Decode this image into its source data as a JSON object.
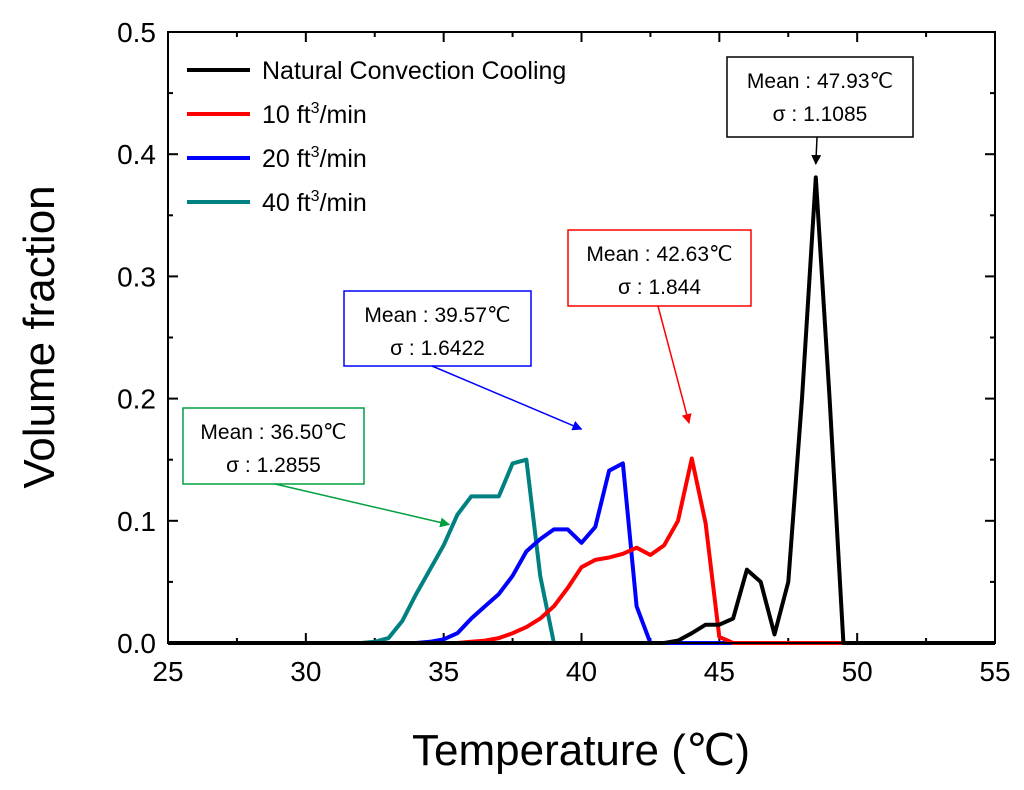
{
  "chart_data": {
    "type": "line",
    "title": "",
    "xlabel": "Temperature (℃)",
    "ylabel": "Volume fraction",
    "xlim": [
      25,
      55
    ],
    "ylim": [
      0,
      0.5
    ],
    "xticks": [
      "25",
      "30",
      "35",
      "40",
      "45",
      "50",
      "55"
    ],
    "yticks": [
      "0.0",
      "0.1",
      "0.2",
      "0.3",
      "0.4",
      "0.5"
    ],
    "legend_position": "top-left",
    "series": [
      {
        "name": "Natural Convection Cooling",
        "legend_base": "Natural Convection Cooling",
        "legend_sup": "",
        "legend_tail": "",
        "color": "#000000",
        "x": [
          25,
          43,
          43.5,
          44,
          44.5,
          45,
          45.5,
          46,
          46.5,
          47,
          47.5,
          48,
          48.5,
          49,
          49.5,
          55
        ],
        "y": [
          0,
          0,
          0.002,
          0.008,
          0.015,
          0.015,
          0.02,
          0.06,
          0.05,
          0.007,
          0.05,
          0.2,
          0.381,
          0.2,
          0,
          0
        ]
      },
      {
        "name": "10 ft3/min",
        "legend_base": "10 ft",
        "legend_sup": "3",
        "legend_tail": "/min",
        "color": "#ff0000",
        "x": [
          25,
          35.5,
          36,
          36.5,
          37,
          37.5,
          38,
          38.5,
          39,
          39.5,
          40,
          40.5,
          41,
          41.5,
          42,
          42.5,
          43,
          43.5,
          44,
          44.5,
          45,
          45.5,
          46,
          55
        ],
        "y": [
          0,
          0,
          0.001,
          0.002,
          0.004,
          0.008,
          0.013,
          0.02,
          0.03,
          0.045,
          0.062,
          0.068,
          0.07,
          0.073,
          0.078,
          0.072,
          0.08,
          0.1,
          0.151,
          0.098,
          0.005,
          0,
          0,
          0
        ]
      },
      {
        "name": "20 ft3/min",
        "legend_base": "20 ft",
        "legend_sup": "3",
        "legend_tail": "/min",
        "color": "#0000ff",
        "x": [
          25,
          34,
          34.5,
          35,
          35.5,
          36,
          36.5,
          37,
          37.5,
          38,
          38.5,
          39,
          39.5,
          40,
          40.5,
          41,
          41.5,
          42,
          42.5,
          55
        ],
        "y": [
          0,
          0,
          0.001,
          0.003,
          0.008,
          0.02,
          0.03,
          0.04,
          0.055,
          0.075,
          0.085,
          0.093,
          0.093,
          0.082,
          0.095,
          0.141,
          0.147,
          0.03,
          0,
          0
        ]
      },
      {
        "name": "40 ft3/min",
        "legend_base": "40 ft",
        "legend_sup": "3",
        "legend_tail": "/min",
        "color": "#008080",
        "x": [
          25,
          32,
          32.5,
          33,
          33.5,
          34,
          34.5,
          35,
          35.5,
          36,
          36.5,
          37,
          37.5,
          38,
          38.5,
          39,
          55
        ],
        "y": [
          0,
          0,
          0.001,
          0.004,
          0.018,
          0.04,
          0.06,
          0.08,
          0.105,
          0.12,
          0.12,
          0.12,
          0.147,
          0.15,
          0.055,
          0,
          0
        ]
      }
    ],
    "annotations": [
      {
        "name": "natural-convection-stats",
        "line1": "Mean : 47.93℃",
        "line2": "σ : 1.1085",
        "color": "#000000",
        "arrow_x": 48.5,
        "arrow_y": 0.392
      },
      {
        "name": "10-cfm-stats",
        "line1": "Mean : 42.63℃",
        "line2": "σ : 1.844",
        "color": "#ff0000",
        "arrow_x": 43.9,
        "arrow_y": 0.18
      },
      {
        "name": "20-cfm-stats",
        "line1": "Mean : 39.57℃",
        "line2": "σ : 1.6422",
        "color": "#0000ff",
        "arrow_x": 40.0,
        "arrow_y": 0.175
      },
      {
        "name": "40-cfm-stats",
        "line1": "Mean : 36.50℃",
        "line2": "σ : 1.2855",
        "color": "#00a040",
        "arrow_x": 35.2,
        "arrow_y": 0.097
      }
    ]
  }
}
